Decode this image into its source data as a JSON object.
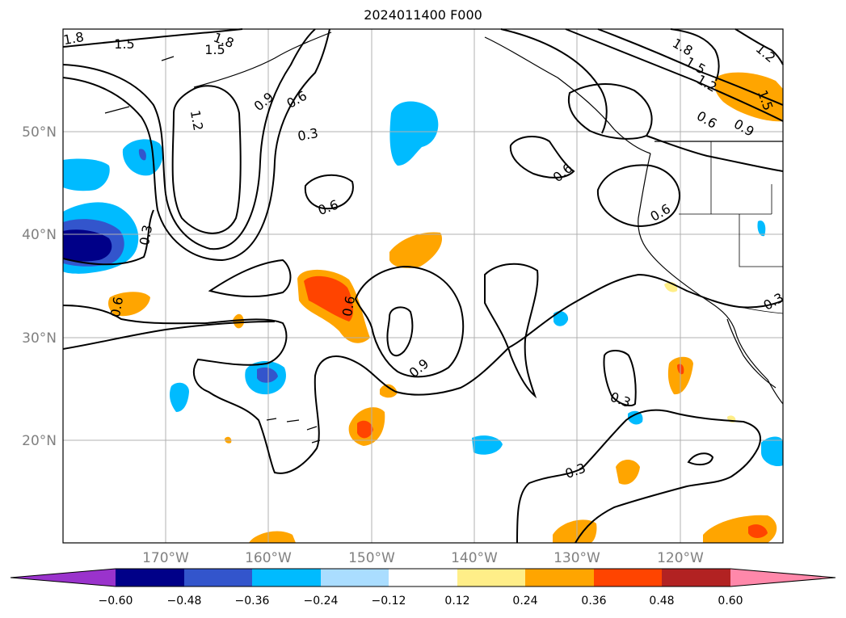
{
  "title": "2024011400 F000",
  "latitude_labels": [
    "50°N",
    "40°N",
    "30°N",
    "20°N"
  ],
  "longitude_labels": [
    "170°W",
    "160°W",
    "150°W",
    "140°W",
    "130°W",
    "120°W"
  ],
  "colorbar": {
    "tick_labels": [
      "−0.60",
      "−0.48",
      "−0.36",
      "−0.24",
      "−0.12",
      "0.12",
      "0.24",
      "0.36",
      "0.48",
      "0.60"
    ],
    "colors": [
      "#9a33cc",
      "#000088",
      "#3355cc",
      "#00bbff",
      "#aaddff",
      "#ffffff",
      "#ffee88",
      "#ffa500",
      "#ff4400",
      "#b22222",
      "#ff88aa"
    ]
  },
  "contour_labels": [
    "1.8",
    "1.5",
    "1.8",
    "1.5",
    "1.2",
    "0.9",
    "0.6",
    "0.3",
    "0.6",
    "0.3",
    "0.6",
    "0.6",
    "0.9",
    "0.3",
    "0.3",
    "0.6",
    "0.6",
    "1.8",
    "1.5",
    "1.2",
    "0.6",
    "0.9",
    "1.5",
    "1.2",
    "0.3"
  ],
  "colors": {
    "grid": "#b0b0b0",
    "contour": "#000000",
    "coast": "#000000"
  }
}
